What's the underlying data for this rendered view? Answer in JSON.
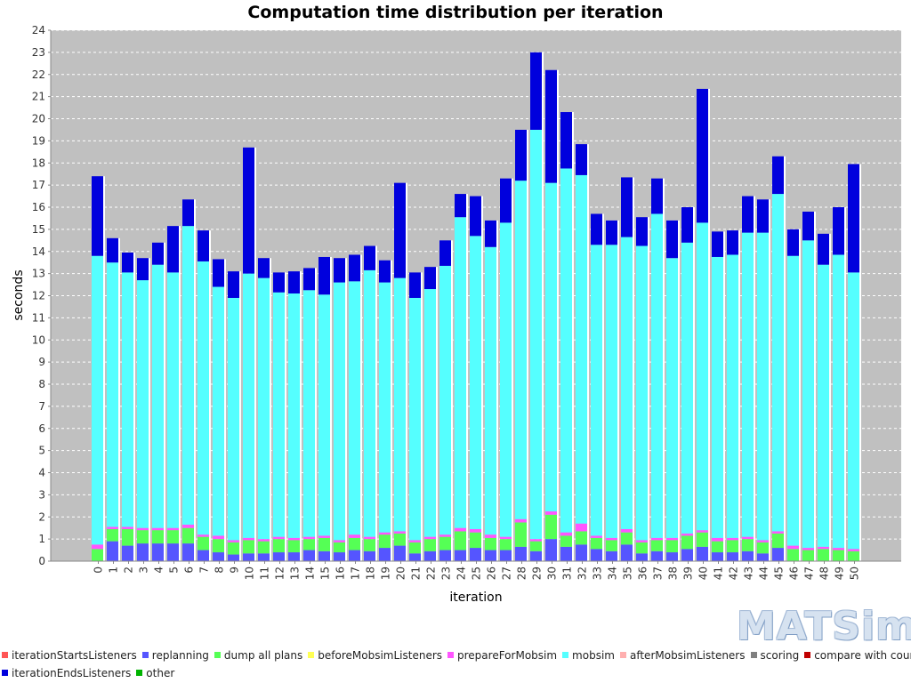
{
  "chart_data": {
    "type": "bar",
    "stacked": true,
    "title": "Computation time distribution per iteration",
    "xlabel": "iteration",
    "ylabel": "seconds",
    "ylim": [
      0,
      24
    ],
    "yticks": [
      0,
      1,
      2,
      3,
      4,
      5,
      6,
      7,
      8,
      9,
      10,
      11,
      12,
      13,
      14,
      15,
      16,
      17,
      18,
      19,
      20,
      21,
      22,
      23,
      24
    ],
    "grid": true,
    "legend_position": "bottom",
    "categories": [
      "0",
      "1",
      "2",
      "3",
      "4",
      "5",
      "6",
      "7",
      "8",
      "9",
      "10",
      "11",
      "12",
      "13",
      "14",
      "15",
      "16",
      "17",
      "18",
      "19",
      "20",
      "21",
      "22",
      "23",
      "24",
      "25",
      "26",
      "27",
      "28",
      "29",
      "30",
      "31",
      "32",
      "33",
      "34",
      "35",
      "36",
      "37",
      "38",
      "39",
      "40",
      "41",
      "42",
      "43",
      "44",
      "45",
      "46",
      "47",
      "48",
      "49",
      "50"
    ],
    "series": [
      {
        "name": "iterationStartsListeners",
        "color": "#ff5555",
        "values": [
          0,
          0,
          0,
          0,
          0,
          0,
          0,
          0,
          0,
          0,
          0,
          0,
          0,
          0,
          0,
          0,
          0,
          0,
          0,
          0,
          0,
          0,
          0,
          0,
          0,
          0,
          0,
          0,
          0,
          0,
          0,
          0,
          0,
          0,
          0,
          0,
          0,
          0,
          0,
          0,
          0,
          0,
          0,
          0,
          0,
          0,
          0,
          0,
          0,
          0,
          0
        ]
      },
      {
        "name": "replanning",
        "color": "#5555ff",
        "values": [
          0,
          0.9,
          0.7,
          0.8,
          0.8,
          0.8,
          0.8,
          0.5,
          0.4,
          0.3,
          0.35,
          0.35,
          0.4,
          0.4,
          0.5,
          0.45,
          0.4,
          0.5,
          0.45,
          0.6,
          0.7,
          0.35,
          0.45,
          0.5,
          0.5,
          0.6,
          0.5,
          0.5,
          0.65,
          0.45,
          1.0,
          0.65,
          0.75,
          0.55,
          0.45,
          0.75,
          0.35,
          0.45,
          0.4,
          0.55,
          0.65,
          0.4,
          0.4,
          0.45,
          0.35,
          0.6,
          0,
          0,
          0,
          0,
          0
        ]
      },
      {
        "name": "dump all plans",
        "color": "#55ff55",
        "values": [
          0.55,
          0.55,
          0.75,
          0.6,
          0.6,
          0.6,
          0.7,
          0.6,
          0.6,
          0.55,
          0.6,
          0.55,
          0.6,
          0.55,
          0.5,
          0.6,
          0.45,
          0.55,
          0.55,
          0.6,
          0.55,
          0.5,
          0.55,
          0.6,
          0.85,
          0.7,
          0.55,
          0.5,
          1.1,
          0.45,
          1.1,
          0.5,
          0.6,
          0.5,
          0.5,
          0.55,
          0.5,
          0.5,
          0.55,
          0.6,
          0.65,
          0.5,
          0.55,
          0.55,
          0.5,
          0.65,
          0.55,
          0.5,
          0.55,
          0.5,
          0.45
        ]
      },
      {
        "name": "beforeMobsimListeners",
        "color": "#ffff55",
        "values": [
          0,
          0,
          0,
          0,
          0,
          0,
          0,
          0,
          0,
          0,
          0,
          0,
          0,
          0,
          0,
          0,
          0,
          0,
          0,
          0,
          0,
          0,
          0,
          0,
          0,
          0,
          0,
          0,
          0,
          0,
          0,
          0,
          0,
          0,
          0,
          0,
          0,
          0,
          0,
          0,
          0,
          0,
          0,
          0,
          0,
          0,
          0,
          0,
          0,
          0,
          0
        ]
      },
      {
        "name": "prepareForMobsim",
        "color": "#ff55ff",
        "values": [
          0.2,
          0.1,
          0.1,
          0.1,
          0.1,
          0.1,
          0.15,
          0.1,
          0.15,
          0.1,
          0.1,
          0.1,
          0.1,
          0.1,
          0.1,
          0.1,
          0.1,
          0.15,
          0.1,
          0.1,
          0.1,
          0.1,
          0.1,
          0.1,
          0.15,
          0.15,
          0.15,
          0.1,
          0.15,
          0.1,
          0.15,
          0.15,
          0.35,
          0.1,
          0.1,
          0.15,
          0.1,
          0.1,
          0.1,
          0.1,
          0.1,
          0.15,
          0.1,
          0.1,
          0.1,
          0.1,
          0.15,
          0.1,
          0.1,
          0.1,
          0.1
        ]
      },
      {
        "name": "mobsim",
        "color": "#55ffff",
        "values": [
          13.05,
          11.95,
          11.5,
          11.2,
          11.9,
          11.55,
          13.5,
          12.35,
          11.25,
          10.95,
          11.95,
          11.8,
          11.05,
          11.05,
          11.15,
          10.9,
          11.65,
          11.45,
          12.05,
          11.3,
          11.45,
          10.95,
          11.2,
          12.15,
          14.05,
          13.25,
          13.0,
          14.2,
          15.3,
          18.5,
          14.85,
          16.45,
          15.75,
          13.15,
          13.25,
          13.2,
          13.3,
          14.65,
          12.65,
          13.15,
          13.9,
          12.7,
          12.8,
          13.75,
          13.9,
          15.25,
          13.1,
          13.9,
          12.75,
          13.25,
          12.5
        ]
      },
      {
        "name": "afterMobsimListeners",
        "color": "#ffafaf",
        "values": [
          0,
          0,
          0,
          0,
          0,
          0,
          0,
          0,
          0,
          0,
          0,
          0,
          0,
          0,
          0,
          0,
          0,
          0,
          0,
          0,
          0,
          0,
          0,
          0,
          0,
          0,
          0,
          0,
          0,
          0,
          0,
          0,
          0,
          0,
          0,
          0,
          0,
          0,
          0,
          0,
          0,
          0,
          0,
          0,
          0,
          0,
          0,
          0,
          0,
          0,
          0
        ]
      },
      {
        "name": "scoring",
        "color": "#808080",
        "values": [
          0,
          0,
          0,
          0,
          0,
          0,
          0,
          0,
          0,
          0,
          0,
          0,
          0,
          0,
          0,
          0,
          0,
          0,
          0,
          0,
          0,
          0,
          0,
          0,
          0,
          0,
          0,
          0,
          0,
          0,
          0,
          0,
          0,
          0,
          0,
          0,
          0,
          0,
          0,
          0,
          0,
          0,
          0,
          0,
          0,
          0,
          0,
          0,
          0,
          0,
          0
        ]
      },
      {
        "name": "compare with counts",
        "color": "#c00000",
        "values": [
          0,
          0,
          0,
          0,
          0,
          0,
          0,
          0,
          0,
          0,
          0,
          0,
          0,
          0,
          0,
          0,
          0,
          0,
          0,
          0,
          0,
          0,
          0,
          0,
          0,
          0,
          0,
          0,
          0,
          0,
          0,
          0,
          0,
          0,
          0,
          0,
          0,
          0,
          0,
          0,
          0,
          0,
          0,
          0,
          0,
          0,
          0,
          0,
          0,
          0,
          0
        ]
      },
      {
        "name": "iterationEndsListeners",
        "color": "#0000dd",
        "values": [
          3.6,
          1.1,
          0.9,
          1.0,
          1.0,
          2.1,
          1.2,
          1.4,
          1.25,
          1.2,
          5.7,
          0.9,
          0.9,
          1.0,
          1.0,
          1.7,
          1.1,
          1.2,
          1.1,
          1.0,
          4.3,
          1.15,
          1.0,
          1.15,
          1.05,
          1.8,
          1.2,
          2.0,
          2.3,
          3.5,
          5.1,
          2.55,
          1.4,
          1.4,
          1.1,
          2.7,
          1.3,
          1.6,
          1.7,
          1.6,
          6.05,
          1.15,
          1.1,
          1.65,
          1.5,
          1.7,
          1.2,
          1.3,
          1.4,
          2.15,
          4.9
        ]
      },
      {
        "name": "other",
        "color": "#00b400",
        "values": [
          0,
          0,
          0,
          0,
          0,
          0,
          0,
          0,
          0,
          0,
          0,
          0,
          0,
          0,
          0,
          0,
          0,
          0,
          0,
          0,
          0,
          0,
          0,
          0,
          0,
          0,
          0,
          0,
          0,
          0,
          0,
          0,
          0,
          0,
          0,
          0,
          0,
          0,
          0,
          0,
          0,
          0,
          0,
          0,
          0,
          0,
          0,
          0,
          0,
          0,
          0
        ]
      }
    ]
  },
  "logo_text": "MATSim"
}
